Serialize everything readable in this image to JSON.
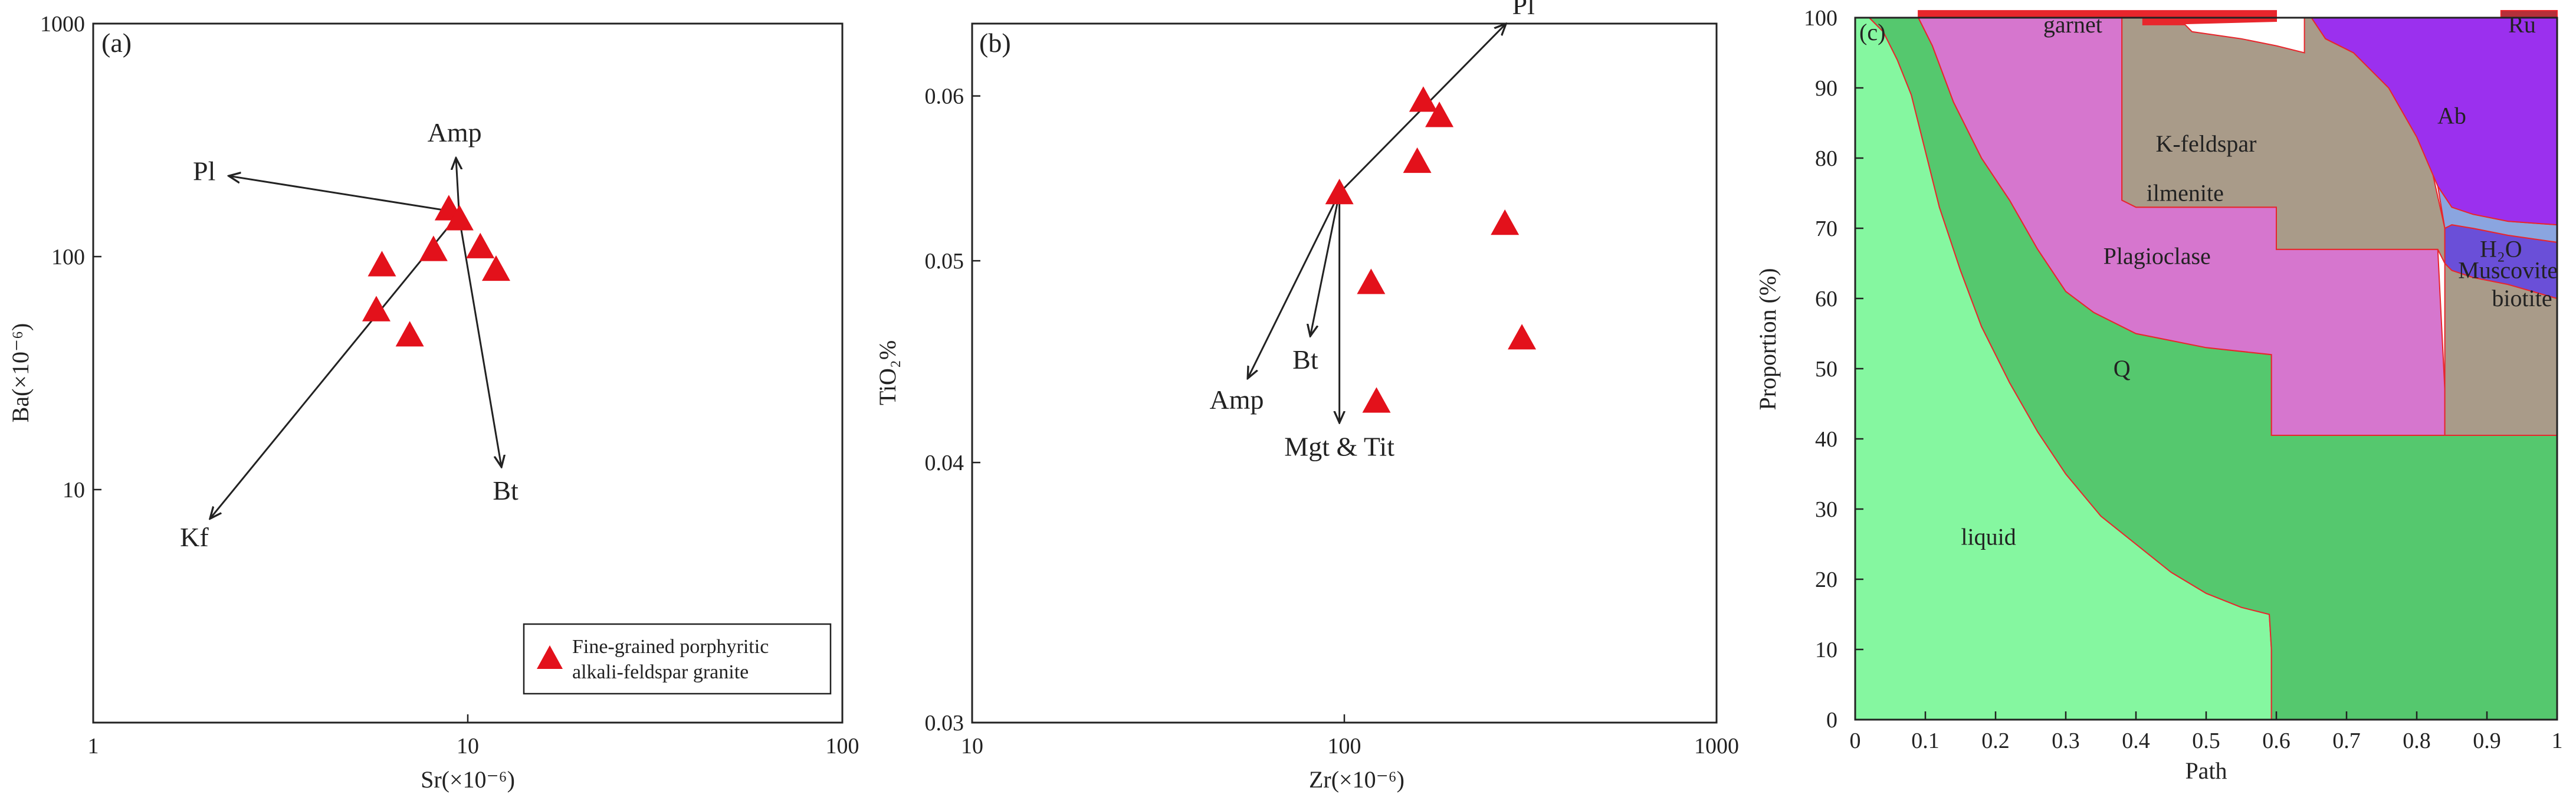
{
  "panels": [
    {
      "id": "a",
      "letter": "(a)",
      "type": "scatter",
      "xscale": "log",
      "yscale": "log",
      "xlim": [
        1,
        100
      ],
      "ylim": [
        1,
        1000
      ],
      "x_ticks": [
        {
          "v": 1,
          "label": "1"
        },
        {
          "v": 10,
          "label": "10"
        },
        {
          "v": 100,
          "label": "100"
        }
      ],
      "y_ticks": [
        {
          "v": 10,
          "label": "10"
        },
        {
          "v": 100,
          "label": "100"
        },
        {
          "v": 1000,
          "label": "1000"
        }
      ],
      "xlabel": "Sr(×10⁻⁶)",
      "ylabel": "Ba(×10⁻⁶)",
      "points": [
        [
          5.9,
          92
        ],
        [
          5.7,
          59
        ],
        [
          7.0,
          46
        ],
        [
          8.1,
          107
        ],
        [
          8.9,
          160
        ],
        [
          9.5,
          145
        ],
        [
          10.8,
          110
        ],
        [
          11.9,
          88
        ]
      ],
      "vectors": [
        {
          "label": "Pl",
          "from": [
            9.4,
            155
          ],
          "to": [
            2.3,
            222
          ]
        },
        {
          "label": "Amp",
          "from": [
            9.5,
            145
          ],
          "to": [
            9.3,
            265
          ]
        },
        {
          "label": "Bt",
          "from": [
            9.5,
            145
          ],
          "to": [
            12.3,
            12.5
          ]
        },
        {
          "label": "Kf",
          "from": [
            9.4,
            150
          ],
          "to": [
            2.05,
            7.5
          ]
        }
      ],
      "legend": {
        "line1": "Fine-grained porphyritic",
        "line2": "alkali-feldspar granite",
        "color": "#e3111b"
      }
    },
    {
      "id": "b",
      "letter": "(b)",
      "type": "scatter",
      "xscale": "log",
      "yscale": "log",
      "xlim": [
        10,
        1000
      ],
      "ylim": [
        0.03,
        0.065
      ],
      "x_ticks": [
        {
          "v": 10,
          "label": "10"
        },
        {
          "v": 100,
          "label": "100"
        },
        {
          "v": 1000,
          "label": "1000"
        }
      ],
      "y_ticks": [
        {
          "v": 0.03,
          "label": "0.03"
        },
        {
          "v": 0.04,
          "label": "0.04"
        },
        {
          "v": 0.05,
          "label": "0.05"
        },
        {
          "v": 0.06,
          "label": "0.06"
        }
      ],
      "xlabel": "Zr(×10⁻⁶)",
      "ylabel": "TiO₂%",
      "points": [
        [
          97,
          0.0539
        ],
        [
          163,
          0.0597
        ],
        [
          180,
          0.0587
        ],
        [
          157,
          0.0558
        ],
        [
          118,
          0.0488
        ],
        [
          122,
          0.0428
        ],
        [
          270,
          0.0521
        ],
        [
          300,
          0.0459
        ]
      ],
      "vectors": [
        {
          "label": "Pl",
          "from": [
            97,
            0.0539
          ],
          "to": [
            272,
            0.065
          ]
        },
        {
          "label": "Amp",
          "from": [
            97,
            0.0539
          ],
          "to": [
            55,
            0.0439
          ]
        },
        {
          "label": "Bt",
          "from": [
            97,
            0.0539
          ],
          "to": [
            81,
            0.046
          ]
        },
        {
          "label": "Mgt & Tit",
          "from": [
            97,
            0.0539
          ],
          "to": [
            97,
            0.0418
          ]
        }
      ]
    },
    {
      "id": "c",
      "letter": "(c)",
      "type": "area",
      "xlim": [
        0,
        1
      ],
      "ylim": [
        0,
        100
      ],
      "x_ticks": [
        {
          "v": 0,
          "label": "0"
        },
        {
          "v": 0.1,
          "label": "0.1"
        },
        {
          "v": 0.2,
          "label": "0.2"
        },
        {
          "v": 0.3,
          "label": "0.3"
        },
        {
          "v": 0.4,
          "label": "0.4"
        },
        {
          "v": 0.5,
          "label": "0.5"
        },
        {
          "v": 0.6,
          "label": "0.6"
        },
        {
          "v": 0.7,
          "label": "0.7"
        },
        {
          "v": 0.8,
          "label": "0.8"
        },
        {
          "v": 0.9,
          "label": "0.9"
        },
        {
          "v": 1,
          "label": "1"
        }
      ],
      "y_ticks": [
        {
          "v": 0,
          "label": "0"
        },
        {
          "v": 10,
          "label": "10"
        },
        {
          "v": 20,
          "label": "20"
        },
        {
          "v": 30,
          "label": "30"
        },
        {
          "v": 40,
          "label": "40"
        },
        {
          "v": 50,
          "label": "50"
        },
        {
          "v": 60,
          "label": "60"
        },
        {
          "v": 70,
          "label": "70"
        },
        {
          "v": 80,
          "label": "80"
        },
        {
          "v": 90,
          "label": "90"
        },
        {
          "v": 100,
          "label": "100"
        }
      ],
      "xlabel": "Path",
      "ylabel": "Proportion (%)",
      "regions": [
        {
          "name": "liquid",
          "color": "#85f7a0",
          "points": [
            [
              0,
              0
            ],
            [
              0,
              100
            ],
            [
              0.02,
              100
            ],
            [
              0.04,
              98
            ],
            [
              0.06,
              94
            ],
            [
              0.08,
              89
            ],
            [
              0.1,
              81
            ],
            [
              0.12,
              73
            ],
            [
              0.15,
              64
            ],
            [
              0.18,
              56
            ],
            [
              0.22,
              48
            ],
            [
              0.26,
              41
            ],
            [
              0.3,
              35
            ],
            [
              0.35,
              29
            ],
            [
              0.4,
              25
            ],
            [
              0.45,
              21
            ],
            [
              0.5,
              18
            ],
            [
              0.55,
              16
            ],
            [
              0.59,
              15
            ],
            [
              0.593,
              10
            ],
            [
              0.593,
              0
            ]
          ]
        },
        {
          "name": "Q",
          "color": "#55c86e",
          "points": [
            [
              0.593,
              0
            ],
            [
              0.593,
              10
            ],
            [
              0.59,
              15
            ],
            [
              0.55,
              16
            ],
            [
              0.5,
              18
            ],
            [
              0.45,
              21
            ],
            [
              0.4,
              25
            ],
            [
              0.35,
              29
            ],
            [
              0.3,
              35
            ],
            [
              0.26,
              41
            ],
            [
              0.22,
              48
            ],
            [
              0.18,
              56
            ],
            [
              0.15,
              64
            ],
            [
              0.12,
              73
            ],
            [
              0.1,
              81
            ],
            [
              0.08,
              89
            ],
            [
              0.06,
              94
            ],
            [
              0.04,
              98
            ],
            [
              0.02,
              100
            ],
            [
              0.09,
              100
            ],
            [
              0.11,
              96
            ],
            [
              0.14,
              88
            ],
            [
              0.18,
              80
            ],
            [
              0.22,
              74
            ],
            [
              0.26,
              67
            ],
            [
              0.3,
              61
            ],
            [
              0.34,
              58
            ],
            [
              0.4,
              55
            ],
            [
              0.45,
              54
            ],
            [
              0.5,
              53
            ],
            [
              0.593,
              52
            ],
            [
              0.593,
              40.5
            ],
            [
              1,
              40.5
            ],
            [
              1,
              0
            ]
          ]
        },
        {
          "name": "Plagioclase",
          "color": "#d676ce",
          "points": [
            [
              0.593,
              40.5
            ],
            [
              0.593,
              52
            ],
            [
              0.5,
              53
            ],
            [
              0.45,
              54
            ],
            [
              0.4,
              55
            ],
            [
              0.34,
              58
            ],
            [
              0.3,
              61
            ],
            [
              0.26,
              67
            ],
            [
              0.22,
              74
            ],
            [
              0.18,
              80
            ],
            [
              0.14,
              88
            ],
            [
              0.11,
              96
            ],
            [
              0.09,
              100
            ],
            [
              0.38,
              100
            ],
            [
              0.38,
              74
            ],
            [
              0.4,
              73
            ],
            [
              0.6,
              73
            ],
            [
              0.6,
              67
            ],
            [
              0.83,
              67
            ],
            [
              0.84,
              47
            ],
            [
              0.84,
              40.5
            ]
          ]
        },
        {
          "name": "K-feldspar",
          "color": "#a99b89",
          "points": [
            [
              0.38,
              100
            ],
            [
              0.41,
              100
            ],
            [
              0.41,
              99
            ],
            [
              0.47,
              99
            ],
            [
              0.48,
              98
            ],
            [
              0.55,
              97
            ],
            [
              0.6,
              96
            ],
            [
              0.64,
              95
            ],
            [
              0.64,
              100
            ],
            [
              0.65,
              100
            ],
            [
              0.67,
              97
            ],
            [
              0.71,
              95
            ],
            [
              0.75,
              92
            ],
            [
              0.79,
              86
            ],
            [
              0.82,
              79
            ],
            [
              0.84,
              70
            ],
            [
              0.84,
              40.5
            ],
            [
              1,
              40.5
            ],
            [
              1,
              60
            ],
            [
              0.93,
              62
            ],
            [
              0.88,
              63
            ],
            [
              0.85,
              64
            ],
            [
              0.84,
              65
            ],
            [
              0.83,
              67
            ],
            [
              0.6,
              67
            ],
            [
              0.6,
              73
            ],
            [
              0.4,
              73
            ],
            [
              0.38,
              74
            ]
          ]
        },
        {
          "name": "biotite",
          "color": "#6a4fd8",
          "points": [
            [
              0.84,
              70
            ],
            [
              0.84,
              65
            ],
            [
              0.85,
              64
            ],
            [
              0.88,
              63
            ],
            [
              0.93,
              62
            ],
            [
              1,
              60
            ],
            [
              1,
              68
            ],
            [
              0.93,
              69
            ],
            [
              0.88,
              70
            ],
            [
              0.85,
              70.5
            ]
          ]
        },
        {
          "name": "Muscovite",
          "color": "#8aa5e0",
          "points": [
            [
              0.84,
              70
            ],
            [
              0.85,
              70.5
            ],
            [
              0.88,
              70
            ],
            [
              0.93,
              69
            ],
            [
              1,
              68
            ],
            [
              1,
              70.5
            ],
            [
              0.93,
              71
            ],
            [
              0.88,
              72
            ],
            [
              0.85,
              73
            ],
            [
              0.83,
              76
            ]
          ]
        },
        {
          "name": "Ab",
          "color": "#9b30ee",
          "points": [
            [
              0.65,
              100
            ],
            [
              1,
              100
            ],
            [
              1,
              70.5
            ],
            [
              0.93,
              71
            ],
            [
              0.88,
              72
            ],
            [
              0.85,
              73
            ],
            [
              0.83,
              76
            ],
            [
              0.8,
              83
            ],
            [
              0.76,
              90
            ],
            [
              0.71,
              95
            ],
            [
              0.67,
              97
            ]
          ]
        },
        {
          "name": "garnet",
          "color": "#e8262c",
          "points": [
            [
              0.09,
              100
            ],
            [
              0.09,
              101
            ],
            [
              0.6,
              101
            ],
            [
              0.6,
              99.5
            ],
            [
              0.41,
              99
            ],
            [
              0.41,
              100
            ]
          ]
        },
        {
          "name": "Ru",
          "color": "#b5303a",
          "points": [
            [
              0.92,
              100
            ],
            [
              0.92,
              101.5
            ],
            [
              1,
              101.5
            ],
            [
              1,
              100
            ]
          ]
        }
      ],
      "labels": [
        {
          "text": "liquid",
          "at": [
            0.19,
            26
          ]
        },
        {
          "text": "Q",
          "at": [
            0.38,
            50
          ]
        },
        {
          "text": "Plagioclase",
          "at": [
            0.43,
            66
          ]
        },
        {
          "text": "K-feldspar",
          "at": [
            0.5,
            82
          ]
        },
        {
          "text": "ilmenite",
          "at": [
            0.47,
            75
          ]
        },
        {
          "text": "garnet",
          "at": [
            0.31,
            99
          ]
        },
        {
          "text": "Ab",
          "at": [
            0.85,
            86
          ]
        },
        {
          "text": "Ru",
          "at": [
            0.95,
            99
          ]
        },
        {
          "text": "H₂O",
          "at": [
            0.92,
            67
          ]
        },
        {
          "text": "Muscovite",
          "at": [
            0.93,
            64
          ]
        },
        {
          "text": "biotite",
          "at": [
            0.95,
            60
          ]
        }
      ]
    }
  ],
  "marker_color": "#e3111b"
}
